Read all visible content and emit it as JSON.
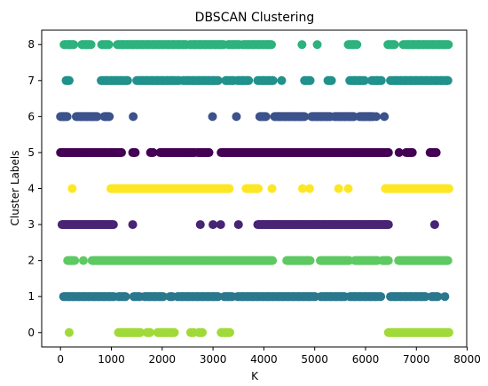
{
  "chart_data": {
    "type": "scatter",
    "title": "DBSCAN Clustering",
    "xlabel": "K",
    "ylabel": "Cluster Labels",
    "xlim": [
      -370,
      7990
    ],
    "ylim": [
      -0.4,
      8.4
    ],
    "xticks": [
      "0",
      "1000",
      "2000",
      "3000",
      "4000",
      "5000",
      "6000",
      "7000",
      "8000"
    ],
    "xtick_values": [
      0,
      1000,
      2000,
      3000,
      4000,
      5000,
      6000,
      7000,
      8000
    ],
    "yticks": [
      "0",
      "1",
      "2",
      "3",
      "4",
      "5",
      "6",
      "7",
      "8"
    ],
    "ytick_values": [
      0,
      1,
      2,
      3,
      4,
      5,
      6,
      7,
      8
    ],
    "grid": false,
    "colormap": "viridis",
    "series": [
      {
        "label_value": 0,
        "color": "#a0da39",
        "ranges": [
          [
            170,
            170
          ],
          [
            1140,
            1570
          ],
          [
            1700,
            1760
          ],
          [
            1910,
            2240
          ],
          [
            2560,
            2620
          ],
          [
            2720,
            2790
          ],
          [
            3160,
            3330
          ],
          [
            6450,
            7640
          ]
        ],
        "points": [
          170,
          1140,
          1230,
          1330,
          1430,
          1520,
          1570,
          1700,
          1760,
          1910,
          2000,
          2100,
          2180,
          2240,
          2560,
          2620,
          2720,
          2790,
          3160,
          3250,
          3330,
          6450,
          6550,
          6650,
          6750,
          6850,
          6950,
          7050,
          7150,
          7250,
          7350,
          7450,
          7550,
          7640
        ]
      },
      {
        "label_value": 1,
        "color": "#2a788e",
        "ranges": [
          [
            60,
            1050
          ],
          [
            1140,
            1280
          ],
          [
            1440,
            1560
          ],
          [
            1650,
            2020
          ],
          [
            2150,
            2200
          ],
          [
            2300,
            3100
          ],
          [
            3220,
            3380
          ],
          [
            3480,
            5010
          ],
          [
            5120,
            5590
          ],
          [
            5690,
            6300
          ],
          [
            6490,
            7180
          ],
          [
            7300,
            7420
          ],
          [
            7560,
            7560
          ]
        ],
        "points": [
          60,
          160,
          260,
          360,
          460,
          560,
          660,
          760,
          860,
          960,
          1050,
          1140,
          1280,
          1440,
          1560,
          1650,
          1750,
          1850,
          1950,
          2020,
          2150,
          2200,
          2300,
          2400,
          2500,
          2600,
          2700,
          2800,
          2900,
          3000,
          3100,
          3220,
          3300,
          3380,
          3480,
          3580,
          3680,
          3780,
          3880,
          3980,
          4080,
          4180,
          4280,
          4380,
          4480,
          4580,
          4680,
          4780,
          4880,
          5010,
          5120,
          5220,
          5320,
          5420,
          5520,
          5590,
          5690,
          5790,
          5890,
          5990,
          6090,
          6190,
          6300,
          6490,
          6590,
          6690,
          6790,
          6890,
          6990,
          7090,
          7180,
          7300,
          7420,
          7560
        ]
      },
      {
        "label_value": 2,
        "color": "#5ec962",
        "ranges": [
          [
            140,
            280
          ],
          [
            450,
            450
          ],
          [
            620,
            4170
          ],
          [
            4450,
            4910
          ],
          [
            5110,
            5680
          ],
          [
            5790,
            6230
          ],
          [
            6330,
            6450
          ],
          [
            6650,
            7620
          ]
        ],
        "points": [
          140,
          210,
          280,
          450,
          620,
          720,
          820,
          920,
          1020,
          1120,
          1220,
          1320,
          1420,
          1520,
          1620,
          1720,
          1820,
          1920,
          2020,
          2120,
          2220,
          2320,
          2420,
          2520,
          2620,
          2720,
          2820,
          2920,
          3020,
          3120,
          3220,
          3320,
          3420,
          3520,
          3620,
          3720,
          3820,
          3920,
          4020,
          4100,
          4170,
          4450,
          4550,
          4650,
          4750,
          4850,
          4910,
          5110,
          5210,
          5310,
          5410,
          5510,
          5610,
          5680,
          5790,
          5890,
          5990,
          6090,
          6190,
          6230,
          6330,
          6400,
          6450,
          6650,
          6750,
          6850,
          6950,
          7050,
          7150,
          7250,
          7350,
          7450,
          7550,
          7620
        ]
      },
      {
        "label_value": 3,
        "color": "#482475",
        "ranges": [
          [
            30,
            1040
          ],
          [
            1420,
            1420
          ],
          [
            2750,
            2750
          ],
          [
            3000,
            3000
          ],
          [
            3150,
            3150
          ],
          [
            3500,
            3500
          ],
          [
            3880,
            6450
          ],
          [
            7360,
            7360
          ]
        ],
        "points": [
          30,
          130,
          230,
          330,
          430,
          530,
          630,
          730,
          830,
          930,
          1040,
          1420,
          2750,
          3000,
          3150,
          3500,
          3880,
          3980,
          4080,
          4180,
          4280,
          4380,
          4480,
          4580,
          4680,
          4780,
          4880,
          4980,
          5080,
          5180,
          5280,
          5380,
          5480,
          5580,
          5680,
          5780,
          5880,
          5980,
          6080,
          6180,
          6280,
          6380,
          6450,
          7360
        ]
      },
      {
        "label_value": 4,
        "color": "#fde725",
        "ranges": [
          [
            230,
            230
          ],
          [
            990,
            3320
          ],
          [
            3650,
            3890
          ],
          [
            4160,
            4160
          ],
          [
            4760,
            4760
          ],
          [
            4900,
            4900
          ],
          [
            5470,
            5470
          ],
          [
            5660,
            5660
          ],
          [
            6390,
            7640
          ]
        ],
        "points": [
          230,
          990,
          1090,
          1190,
          1290,
          1390,
          1490,
          1590,
          1690,
          1790,
          1890,
          1990,
          2090,
          2190,
          2290,
          2390,
          2490,
          2590,
          2690,
          2790,
          2890,
          2990,
          3090,
          3190,
          3260,
          3320,
          3650,
          3750,
          3820,
          3890,
          4160,
          4760,
          4900,
          5470,
          5660,
          6390,
          6490,
          6590,
          6690,
          6790,
          6890,
          6990,
          7090,
          7190,
          7290,
          7390,
          7490,
          7590,
          7640
        ]
      },
      {
        "label_value": 5,
        "color": "#440154",
        "ranges": [
          [
            0,
            1200
          ],
          [
            1420,
            1470
          ],
          [
            1770,
            1820
          ],
          [
            1960,
            2640
          ],
          [
            2700,
            2920
          ],
          [
            3160,
            6450
          ],
          [
            6660,
            6660
          ],
          [
            6800,
            6920
          ],
          [
            7270,
            7390
          ]
        ],
        "points": [
          0,
          100,
          200,
          300,
          400,
          500,
          600,
          700,
          800,
          900,
          1000,
          1100,
          1200,
          1420,
          1470,
          1770,
          1820,
          1960,
          2060,
          2160,
          2260,
          2360,
          2460,
          2560,
          2640,
          2700,
          2800,
          2920,
          3160,
          3260,
          3360,
          3460,
          3560,
          3660,
          3760,
          3860,
          3960,
          4060,
          4160,
          4260,
          4360,
          4460,
          4560,
          4660,
          4760,
          4860,
          4960,
          5060,
          5160,
          5260,
          5360,
          5460,
          5560,
          5660,
          5760,
          5860,
          5960,
          6060,
          6160,
          6260,
          6360,
          6450,
          6660,
          6800,
          6920,
          7270,
          7390
        ]
      },
      {
        "label_value": 6,
        "color": "#3b528b",
        "ranges": [
          [
            0,
            130
          ],
          [
            310,
            720
          ],
          [
            860,
            960
          ],
          [
            1430,
            1430
          ],
          [
            2990,
            2990
          ],
          [
            3460,
            3460
          ],
          [
            3920,
            4040
          ],
          [
            4210,
            4800
          ],
          [
            4940,
            5310
          ],
          [
            5390,
            5770
          ],
          [
            5880,
            6150
          ],
          [
            6210,
            6210
          ],
          [
            6370,
            6370
          ]
        ],
        "points": [
          0,
          60,
          130,
          310,
          410,
          510,
          610,
          720,
          860,
          960,
          1430,
          2990,
          3460,
          3920,
          4040,
          4210,
          4310,
          4410,
          4510,
          4610,
          4710,
          4800,
          4940,
          5040,
          5140,
          5240,
          5310,
          5390,
          5490,
          5590,
          5690,
          5770,
          5880,
          5980,
          6080,
          6150,
          6210,
          6370
        ]
      },
      {
        "label_value": 7,
        "color": "#21918c",
        "ranges": [
          [
            110,
            170
          ],
          [
            800,
            1320
          ],
          [
            1500,
            2330
          ],
          [
            2410,
            3100
          ],
          [
            3250,
            3400
          ],
          [
            3480,
            3700
          ],
          [
            3880,
            4100
          ],
          [
            4100,
            4180
          ],
          [
            4350,
            4350
          ],
          [
            4800,
            4910
          ],
          [
            5260,
            5330
          ],
          [
            5690,
            5980
          ],
          [
            6120,
            6310
          ],
          [
            6490,
            7620
          ]
        ],
        "points": [
          110,
          170,
          800,
          900,
          1000,
          1100,
          1200,
          1320,
          1500,
          1600,
          1700,
          1800,
          1900,
          2000,
          2100,
          2200,
          2330,
          2410,
          2510,
          2610,
          2710,
          2810,
          2910,
          3010,
          3100,
          3250,
          3400,
          3480,
          3580,
          3700,
          3880,
          3980,
          4100,
          4180,
          4350,
          4800,
          4910,
          5260,
          5330,
          5690,
          5790,
          5890,
          5980,
          6120,
          6220,
          6310,
          6490,
          6590,
          6690,
          6790,
          6890,
          6990,
          7090,
          7190,
          7290,
          7390,
          7490,
          7590,
          7620
        ]
      },
      {
        "label_value": 8,
        "color": "#2db27d",
        "ranges": [
          [
            70,
            260
          ],
          [
            420,
            600
          ],
          [
            810,
            950
          ],
          [
            1120,
            2470
          ],
          [
            2540,
            3210
          ],
          [
            3300,
            3520
          ],
          [
            3590,
            4150
          ],
          [
            4750,
            4750
          ],
          [
            5050,
            5050
          ],
          [
            5660,
            5830
          ],
          [
            6440,
            6570
          ],
          [
            6740,
            7630
          ]
        ],
        "points": [
          70,
          170,
          260,
          420,
          510,
          600,
          810,
          950,
          1120,
          1220,
          1320,
          1420,
          1520,
          1620,
          1720,
          1820,
          1920,
          2020,
          2120,
          2220,
          2320,
          2420,
          2470,
          2540,
          2640,
          2740,
          2840,
          2940,
          3040,
          3140,
          3210,
          3300,
          3400,
          3520,
          3590,
          3690,
          3790,
          3890,
          3990,
          4080,
          4150,
          4750,
          5050,
          5660,
          5750,
          5830,
          6440,
          6570,
          6740,
          6840,
          6940,
          7040,
          7140,
          7240,
          7340,
          7440,
          7540,
          7630
        ]
      }
    ]
  }
}
